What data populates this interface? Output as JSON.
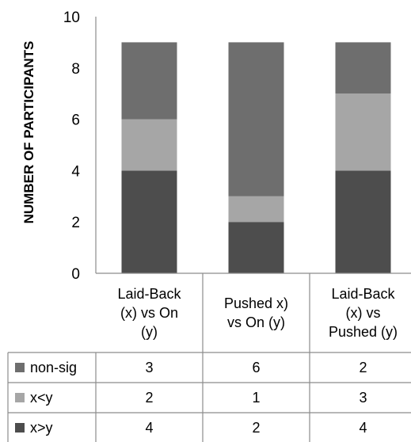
{
  "chart_data": {
    "type": "bar",
    "stacked": true,
    "categories": [
      [
        "Laid-Back",
        "(x) vs On",
        "(y)"
      ],
      [
        "Pushed x)",
        "vs On (y)"
      ],
      [
        "Laid-Back",
        "(x) vs",
        "Pushed (y)"
      ]
    ],
    "series": [
      {
        "name": "x>y",
        "values": [
          4,
          2,
          4
        ],
        "color": "#4d4d4d"
      },
      {
        "name": "x<y",
        "values": [
          2,
          1,
          3
        ],
        "color": "#a6a6a6"
      },
      {
        "name": "non-sig",
        "values": [
          3,
          6,
          2
        ],
        "color": "#6e6e6e"
      }
    ],
    "table_rows": [
      "non-sig",
      "x<y",
      "x>y"
    ],
    "ylabel": "NUMBER OF PARTICIPANTS",
    "xlabel": "",
    "title": "",
    "ylim": [
      0,
      10
    ],
    "yticks": [
      0,
      2,
      4,
      6,
      8,
      10
    ],
    "legend": "data-table-below",
    "grid": false
  }
}
